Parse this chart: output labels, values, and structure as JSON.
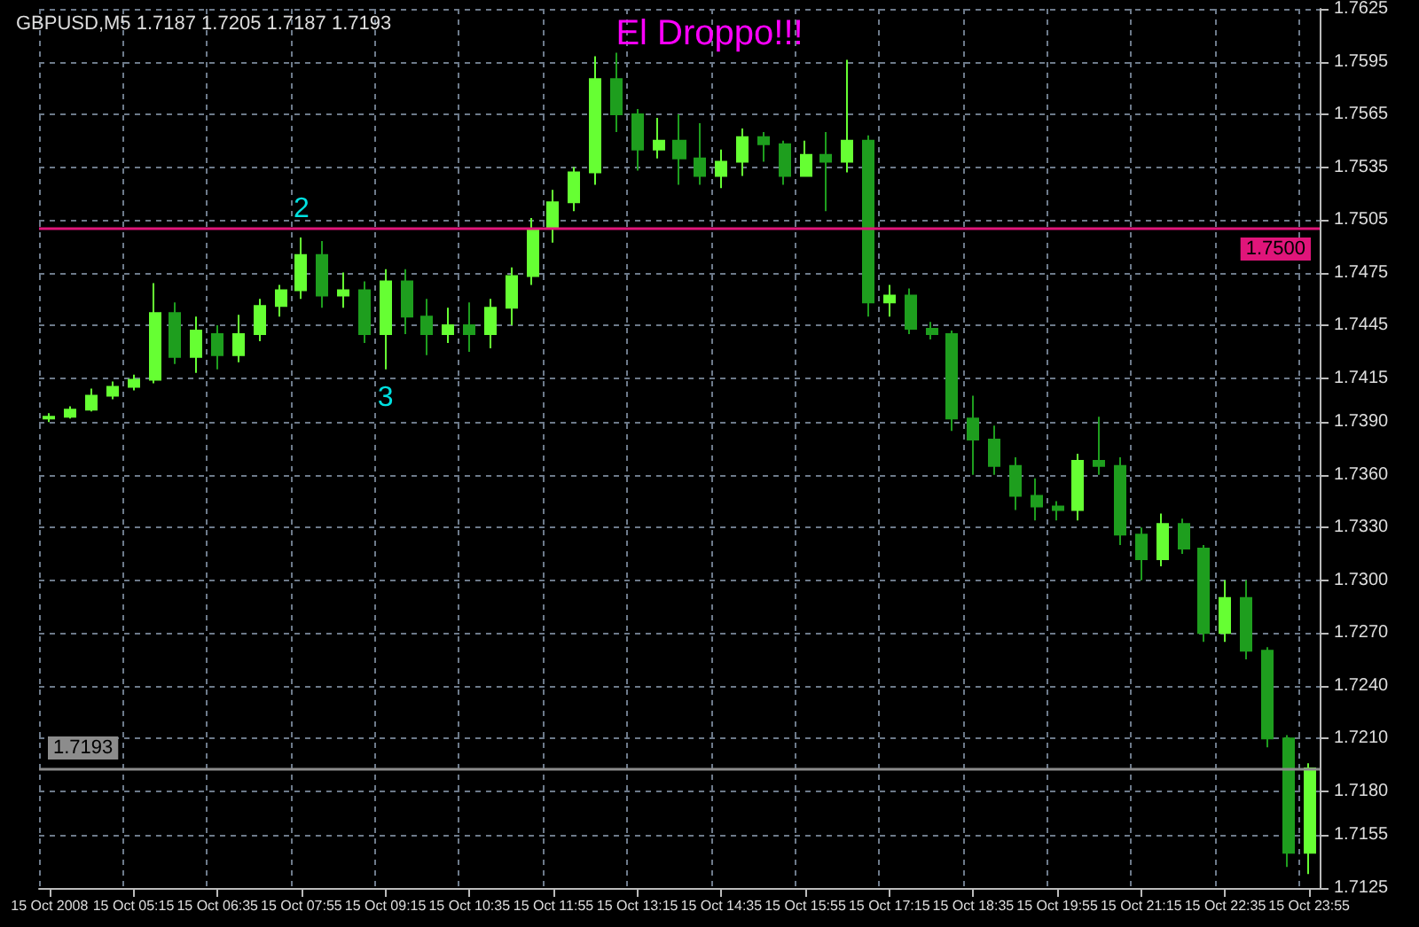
{
  "chart_data": {
    "type": "candlestick",
    "title": "El Droppo!!!",
    "subtitle": "GBPUSD,M5 1.7187 1.7205 1.7187 1.7193",
    "categories": [
      "15 Oct 2008",
      null,
      null,
      null,
      "15 Oct 05:15",
      null,
      null,
      null,
      "15 Oct 06:35",
      null,
      null,
      null,
      "15 Oct 07:55",
      null,
      null,
      null,
      "15 Oct 09:15",
      null,
      null,
      null,
      "15 Oct 10:35",
      null,
      null,
      null,
      "15 Oct 11:55",
      null,
      null,
      null,
      "15 Oct 13:15",
      null,
      null,
      null,
      "15 Oct 14:35",
      null,
      null,
      null,
      "15 Oct 15:55",
      null,
      null,
      null,
      "15 Oct 17:15",
      null,
      null,
      null,
      "15 Oct 18:35",
      null,
      null,
      null,
      "15 Oct 19:55",
      null,
      null,
      null,
      "15 Oct 21:15",
      null,
      null,
      null,
      "15 Oct 22:35",
      null,
      null,
      null,
      "15 Oct 23:55"
    ],
    "ohlc": [
      [
        1.7392,
        1.7395,
        1.739,
        1.7393
      ],
      [
        1.7393,
        1.7399,
        1.7392,
        1.7397
      ],
      [
        1.7397,
        1.7409,
        1.7396,
        1.7405
      ],
      [
        1.7405,
        1.7413,
        1.7403,
        1.741
      ],
      [
        1.741,
        1.7417,
        1.7408,
        1.7414
      ],
      [
        1.7414,
        1.7469,
        1.7412,
        1.7452
      ],
      [
        1.7452,
        1.7458,
        1.7423,
        1.7427
      ],
      [
        1.7427,
        1.745,
        1.7418,
        1.7442
      ],
      [
        1.744,
        1.7445,
        1.742,
        1.7428
      ],
      [
        1.7428,
        1.7451,
        1.7424,
        1.744
      ],
      [
        1.744,
        1.746,
        1.7436,
        1.7456
      ],
      [
        1.7456,
        1.7468,
        1.745,
        1.7465
      ],
      [
        1.7465,
        1.7495,
        1.746,
        1.7485
      ],
      [
        1.7485,
        1.7493,
        1.7455,
        1.7462
      ],
      [
        1.7462,
        1.7475,
        1.7455,
        1.7465
      ],
      [
        1.7465,
        1.747,
        1.7435,
        1.744
      ],
      [
        1.744,
        1.7477,
        1.742,
        1.747
      ],
      [
        1.747,
        1.7477,
        1.744,
        1.745
      ],
      [
        1.745,
        1.746,
        1.7428,
        1.744
      ],
      [
        1.744,
        1.7455,
        1.7435,
        1.7445
      ],
      [
        1.7445,
        1.7458,
        1.743,
        1.744
      ],
      [
        1.744,
        1.746,
        1.7432,
        1.7455
      ],
      [
        1.7455,
        1.7478,
        1.7445,
        1.7473
      ],
      [
        1.7473,
        1.7506,
        1.7468,
        1.75
      ],
      [
        1.75,
        1.7522,
        1.7492,
        1.7515
      ],
      [
        1.7515,
        1.7535,
        1.751,
        1.7532
      ],
      [
        1.7532,
        1.7598,
        1.7525,
        1.7585
      ],
      [
        1.7585,
        1.76,
        1.7555,
        1.7565
      ],
      [
        1.7565,
        1.7568,
        1.7533,
        1.7545
      ],
      [
        1.7545,
        1.7563,
        1.754,
        1.755
      ],
      [
        1.755,
        1.7565,
        1.7525,
        1.754
      ],
      [
        1.754,
        1.756,
        1.7525,
        1.753
      ],
      [
        1.753,
        1.7545,
        1.7523,
        1.7538
      ],
      [
        1.7538,
        1.7557,
        1.753,
        1.7552
      ],
      [
        1.7552,
        1.7555,
        1.7538,
        1.7548
      ],
      [
        1.7548,
        1.755,
        1.7525,
        1.753
      ],
      [
        1.753,
        1.755,
        1.753,
        1.7542
      ],
      [
        1.7542,
        1.7555,
        1.751,
        1.7538
      ],
      [
        1.7538,
        1.7596,
        1.7532,
        1.755
      ],
      [
        1.755,
        1.7553,
        1.745,
        1.7458
      ],
      [
        1.7458,
        1.7468,
        1.745,
        1.7462
      ],
      [
        1.7462,
        1.7466,
        1.744,
        1.7443
      ],
      [
        1.7443,
        1.7447,
        1.7437,
        1.744
      ],
      [
        1.744,
        1.7442,
        1.7385,
        1.7392
      ],
      [
        1.7392,
        1.7405,
        1.736,
        1.738
      ],
      [
        1.738,
        1.7388,
        1.736,
        1.7365
      ],
      [
        1.7365,
        1.737,
        1.734,
        1.7348
      ],
      [
        1.7348,
        1.7358,
        1.7334,
        1.7342
      ],
      [
        1.7342,
        1.7345,
        1.7334,
        1.734
      ],
      [
        1.734,
        1.7372,
        1.7334,
        1.7368
      ],
      [
        1.7368,
        1.7393,
        1.736,
        1.7365
      ],
      [
        1.7365,
        1.737,
        1.732,
        1.7326
      ],
      [
        1.7326,
        1.733,
        1.73,
        1.7312
      ],
      [
        1.7312,
        1.7338,
        1.7308,
        1.7332
      ],
      [
        1.7332,
        1.7335,
        1.7315,
        1.7318
      ],
      [
        1.7318,
        1.732,
        1.7265,
        1.727
      ],
      [
        1.727,
        1.73,
        1.7265,
        1.729
      ],
      [
        1.729,
        1.73,
        1.7255,
        1.726
      ],
      [
        1.726,
        1.7262,
        1.7205,
        1.721
      ],
      [
        1.721,
        1.7212,
        1.7137,
        1.7145
      ],
      [
        1.7145,
        1.7196,
        1.7133,
        1.7193
      ]
    ],
    "colors": [
      "#66ff33",
      "#66ff33",
      "#66ff33",
      "#66ff33",
      "#66ff33",
      "#66ff33",
      "#1e9e1e",
      "#66ff33",
      "#1e9e1e",
      "#66ff33",
      "#66ff33",
      "#66ff33",
      "#66ff33",
      "#1e9e1e",
      "#66ff33",
      "#1e9e1e",
      "#66ff33",
      "#1e9e1e",
      "#1e9e1e",
      "#66ff33",
      "#1e9e1e",
      "#66ff33",
      "#66ff33",
      "#66ff33",
      "#66ff33",
      "#66ff33",
      "#66ff33",
      "#1e9e1e",
      "#1e9e1e",
      "#66ff33",
      "#1e9e1e",
      "#1e9e1e",
      "#66ff33",
      "#66ff33",
      "#1e9e1e",
      "#1e9e1e",
      "#66ff33",
      "#1e9e1e",
      "#66ff33",
      "#1e9e1e",
      "#66ff33",
      "#1e9e1e",
      "#1e9e1e",
      "#1e9e1e",
      "#1e9e1e",
      "#1e9e1e",
      "#1e9e1e",
      "#1e9e1e",
      "#1e9e1e",
      "#66ff33",
      "#1e9e1e",
      "#1e9e1e",
      "#1e9e1e",
      "#66ff33",
      "#1e9e1e",
      "#1e9e1e",
      "#66ff33",
      "#1e9e1e",
      "#1e9e1e",
      "#1e9e1e",
      "#66ff33"
    ],
    "ylim": [
      1.7125,
      1.7625
    ],
    "yticks": [
      1.7125,
      1.7155,
      {
        "value": 1.718,
        "label": "1.7180"
      },
      {
        "value": 1.721,
        "label": "1.7210"
      },
      {
        "value": 1.724,
        "label": "1.7240"
      },
      {
        "value": 1.727,
        "label": "1.7270"
      },
      {
        "value": 1.73,
        "label": "1.7300"
      },
      {
        "value": 1.733,
        "label": "1.7330"
      },
      {
        "value": 1.736,
        "label": "1.7360"
      },
      {
        "value": 1.739,
        "label": "1.7390"
      },
      1.7415,
      1.7445,
      1.7475,
      1.7505,
      1.7535,
      1.7565,
      1.7595,
      1.7625
    ],
    "ref_lines": [
      {
        "axis": "y",
        "value": 1.75,
        "label": "1.7500",
        "color": "#e0157a"
      },
      {
        "axis": "y",
        "value": 1.7193,
        "label": "1.7193",
        "color": "#8c8c8c"
      }
    ],
    "annotations": [
      {
        "text": "2",
        "x": "15 Oct 07:55",
        "y": 1.7495
      },
      {
        "text": "3",
        "x": "15 Oct 09:15",
        "y": 1.742
      }
    ],
    "grid": true
  }
}
